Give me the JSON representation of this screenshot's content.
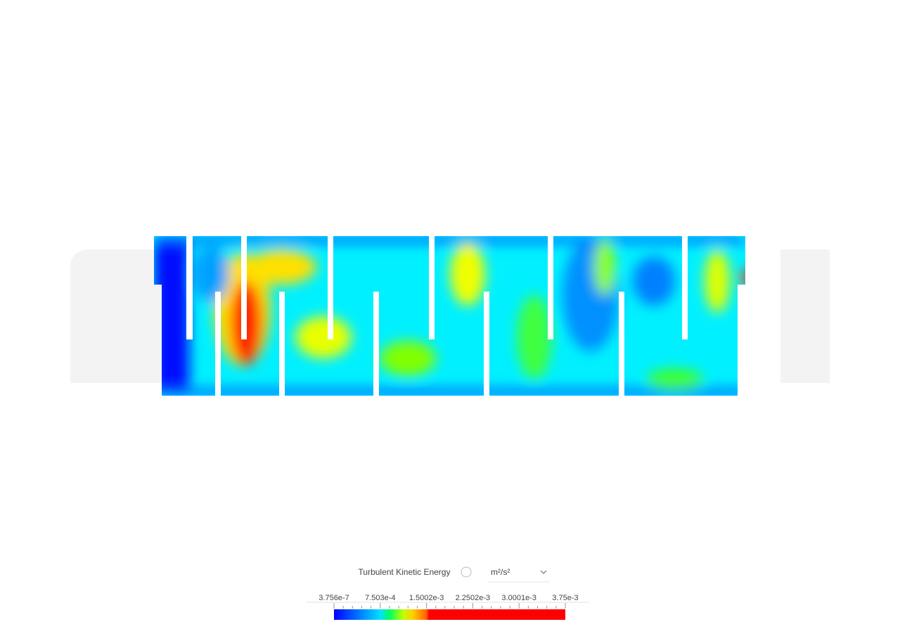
{
  "legend": {
    "title": "Turbulent Kinetic Energy",
    "unit": "m²/s²",
    "labels": [
      "3.756e-7",
      "7.503e-4",
      "1.5002e-3",
      "2.2502e-3",
      "3.0001e-3",
      "3.75e-3"
    ]
  }
}
